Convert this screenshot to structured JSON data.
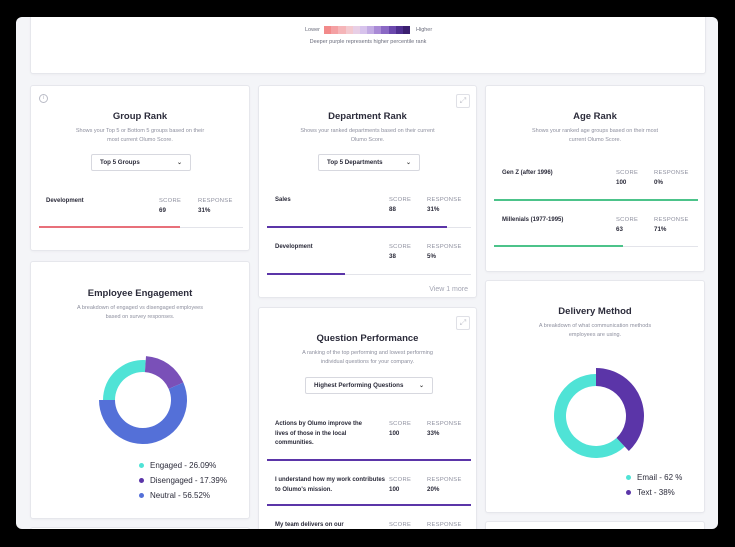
{
  "colors": {
    "purple": "#5b35a8",
    "green": "#4cc38a",
    "red": "#e8707a",
    "teal": "#4fe3d6",
    "blue": "#5470d8",
    "violet": "#7a50b8"
  },
  "legend": {
    "lower": "Lower",
    "higher": "Higher",
    "caption": "Deeper purple represents higher percentile rank"
  },
  "group_rank": {
    "title": "Group Rank",
    "subtitle": "Shows your Top 5 or Bottom 5 groups based on their most current Olumo Score.",
    "dropdown": "Top 5 Groups",
    "rows": [
      {
        "name": "Development",
        "score_label": "SCORE",
        "score": "69",
        "response_label": "RESPONSE",
        "response": "31%",
        "fill": 0.69
      }
    ]
  },
  "department_rank": {
    "title": "Department Rank",
    "subtitle": "Shows your ranked departments based on their current Olumo Score.",
    "dropdown": "Top 5 Departments",
    "rows": [
      {
        "name": "Sales",
        "score_label": "SCORE",
        "score": "88",
        "response_label": "RESPONSE",
        "response": "31%",
        "fill": 0.88
      },
      {
        "name": "Development",
        "score_label": "SCORE",
        "score": "38",
        "response_label": "RESPONSE",
        "response": "5%",
        "fill": 0.38
      }
    ],
    "view_more": "View 1 more"
  },
  "age_rank": {
    "title": "Age Rank",
    "subtitle": "Shows your ranked age groups based on their most current Olumo Score.",
    "rows": [
      {
        "name": "Gen Z (after 1996)",
        "score_label": "SCORE",
        "score": "100",
        "response_label": "RESPONSE",
        "response": "0%",
        "fill": 1.0
      },
      {
        "name": "Millenials (1977-1995)",
        "score_label": "SCORE",
        "score": "63",
        "response_label": "RESPONSE",
        "response": "71%",
        "fill": 0.63
      }
    ]
  },
  "engagement": {
    "title": "Employee Engagement",
    "subtitle": "A breakdown of engaged vs disengaged employees based on survey responses.",
    "segments": [
      {
        "label": "Engaged - 26.09%",
        "value": 26.09,
        "color": "#4fe3d6"
      },
      {
        "label": "Disengaged - 17.39%",
        "value": 17.39,
        "color": "#7a50b8"
      },
      {
        "label": "Neutral - 56.52%",
        "value": 56.52,
        "color": "#5470d8"
      }
    ]
  },
  "question_performance": {
    "title": "Question Performance",
    "subtitle": "A ranking of the top performing and lowest performing individual questions for your company.",
    "dropdown": "Highest Performing Questions",
    "rows": [
      {
        "name": "Actions by Olumo improve the lives of those in the local communities.",
        "score_label": "SCORE",
        "score": "100",
        "response_label": "RESPONSE",
        "response": "33%",
        "fill": 1.0
      },
      {
        "name": "I understand how my work contributes to Olumo's mission.",
        "score_label": "SCORE",
        "score": "100",
        "response_label": "RESPONSE",
        "response": "20%",
        "fill": 1.0
      },
      {
        "name": "My team delivers on our",
        "score_label": "SCORE",
        "score": "",
        "response_label": "RESPONSE",
        "response": "",
        "fill": 0
      }
    ]
  },
  "delivery": {
    "title": "Delivery Method",
    "subtitle": "A breakdown of what communication methods employees are using.",
    "segments": [
      {
        "label": "Email - 62 %",
        "value": 62,
        "color": "#4fe3d6"
      },
      {
        "label": "Text - 38%",
        "value": 38,
        "color": "#5b35a8"
      }
    ]
  }
}
